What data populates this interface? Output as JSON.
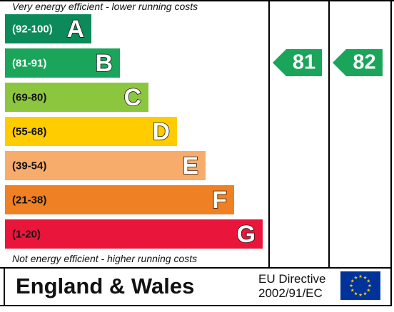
{
  "chart_data": {
    "type": "bar",
    "top_caption": "Very energy efficient - lower running costs",
    "bottom_caption": "Not energy efficient - higher running costs",
    "bands": [
      {
        "range": "(92-100)",
        "letter": "A",
        "color": "#0c8a5a",
        "range_text_color": "#ffffff"
      },
      {
        "range": "(81-91)",
        "letter": "B",
        "color": "#1aa55a",
        "range_text_color": "#ffffff"
      },
      {
        "range": "(69-80)",
        "letter": "C",
        "color": "#8cc63f",
        "range_text_color": "#111111"
      },
      {
        "range": "(55-68)",
        "letter": "D",
        "color": "#ffcc00",
        "range_text_color": "#111111"
      },
      {
        "range": "(39-54)",
        "letter": "E",
        "color": "#f7ac6b",
        "range_text_color": "#111111"
      },
      {
        "range": "(21-38)",
        "letter": "F",
        "color": "#ef8023",
        "range_text_color": "#111111"
      },
      {
        "range": "(1-20)",
        "letter": "G",
        "color": "#e9153b",
        "range_text_color": "#111111"
      }
    ],
    "ratings": [
      {
        "value": 81,
        "band": "B",
        "color": "#1aa55a"
      },
      {
        "value": 82,
        "band": "B",
        "color": "#1aa55a"
      }
    ]
  },
  "footer": {
    "region": "England & Wales",
    "directive_line1": "EU Directive",
    "directive_line2": "2002/91/EC",
    "flag_icon": "eu-flag-icon",
    "flag_color": "#003399",
    "star_color": "#ffcc00"
  }
}
